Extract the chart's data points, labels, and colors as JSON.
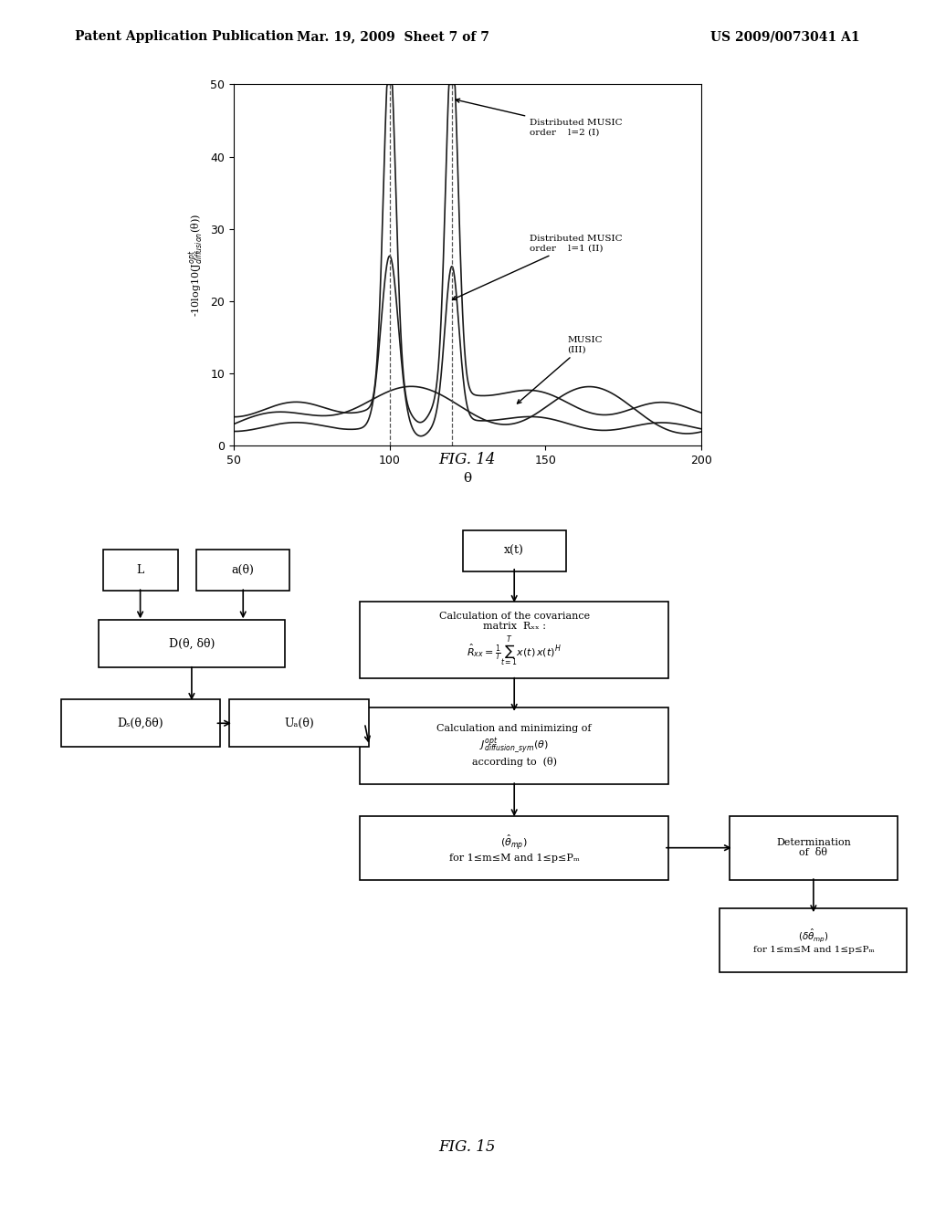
{
  "header_left": "Patent Application Publication",
  "header_center": "Mar. 19, 2009  Sheet 7 of 7",
  "header_right": "US 2009/0073041 A1",
  "fig14_title": "FIG. 14",
  "fig15_title": "FIG. 15",
  "plot_xlabel": "θ",
  "plot_ylabel": "-10log10(Jₙᵊᵘᵠᵖᵖᵘᴼⁿ(θ))",
  "plot_xlim": [
    50,
    200
  ],
  "plot_ylim": [
    0,
    50
  ],
  "plot_xticks": [
    50,
    100,
    150,
    200
  ],
  "plot_yticks": [
    0,
    10,
    20,
    30,
    40,
    50
  ],
  "dashed_lines": [
    100,
    120
  ],
  "legend_I": "Distributed MUSIC\norder    l=2 (I)",
  "legend_II": "Distributed MUSIC\norder    l=1 (II)",
  "legend_III": "MUSIC\n(III)",
  "bg_color": "#ffffff",
  "line_color": "#1a1a1a",
  "dashed_color": "#555555"
}
